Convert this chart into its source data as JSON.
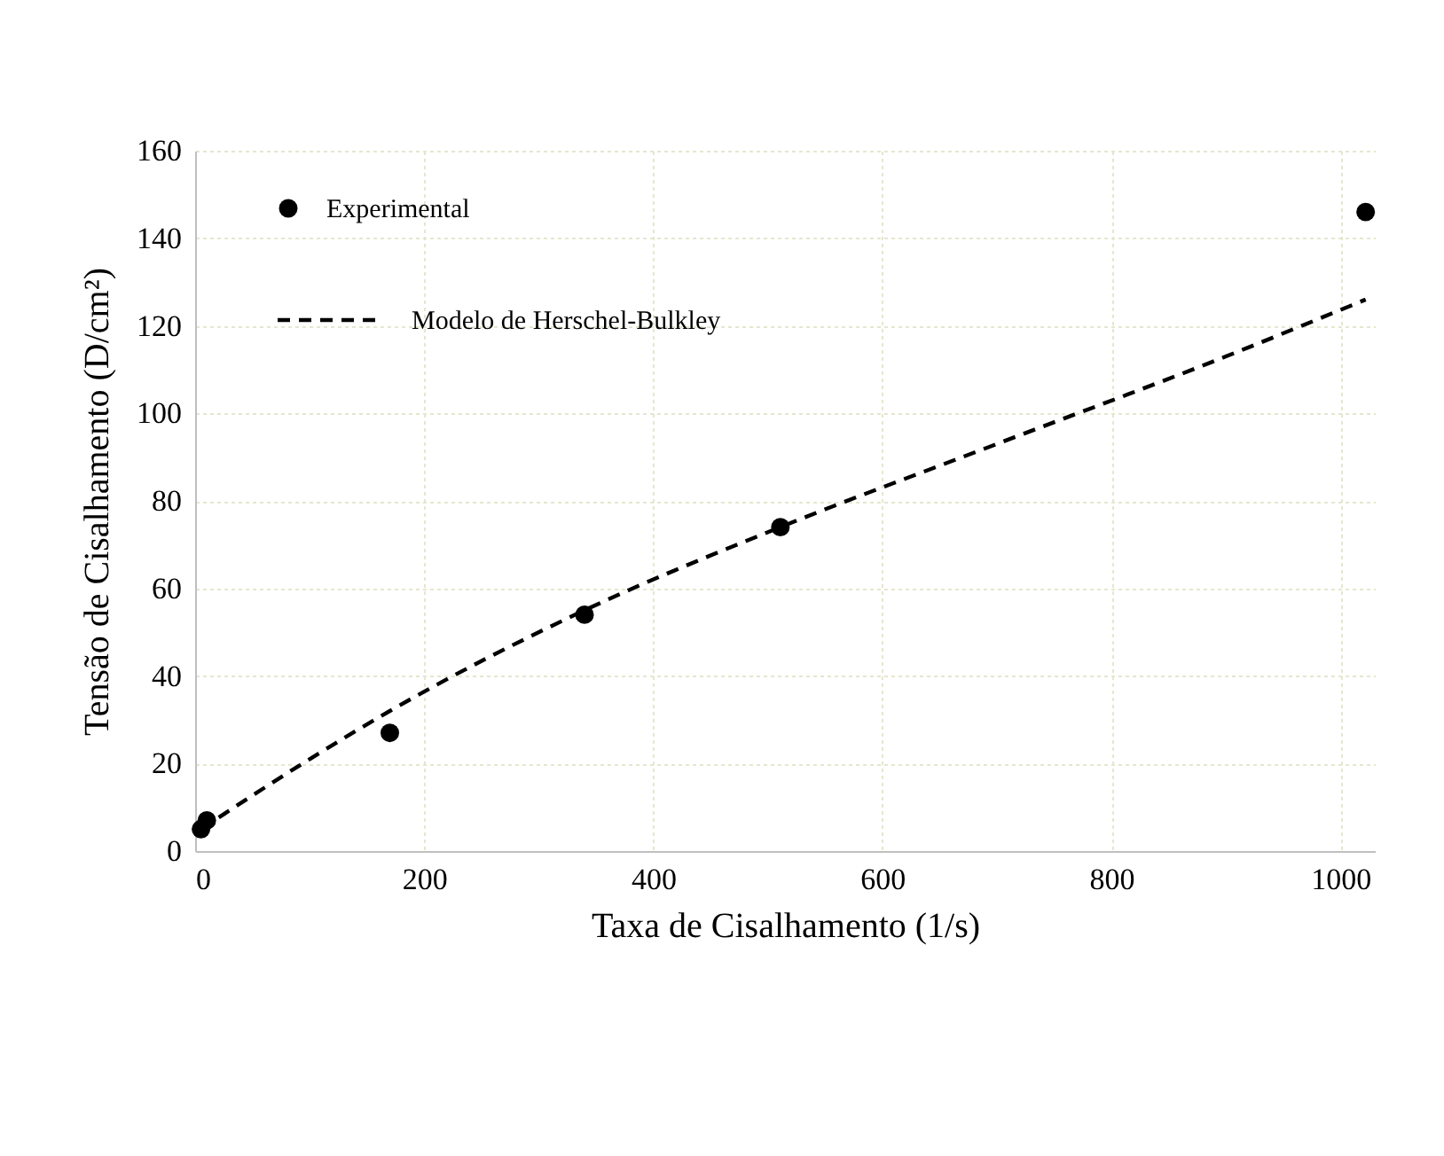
{
  "chart_data": {
    "type": "scatter",
    "xlabel": "Taxa de Cisalhamento (1/s)",
    "ylabel": "Tensão de Cisalhamento (D/cm²)",
    "xlim": [
      0,
      1030
    ],
    "xticks": [
      0,
      200,
      400,
      600,
      800,
      {
        "value": 1000,
        "label": "1000"
      }
    ],
    "ylim": [
      0,
      160
    ],
    "yticks": [
      0,
      20,
      40,
      60,
      80,
      100,
      120,
      140,
      160
    ],
    "grid": true,
    "legend": "top left",
    "series": [
      {
        "name": "Experimental",
        "marker": "circle",
        "color": "#000000",
        "x": [
          5.1,
          10.2,
          170,
          340,
          511,
          1022
        ],
        "values": [
          5,
          7,
          27,
          54,
          74,
          146
        ]
      },
      {
        "name": "Modelo de Herschel-Bulkley",
        "type": "line",
        "marker": "none",
        "line_style": "dashed",
        "color": "#000000",
        "x": [
          5.1,
          100,
          170,
          340,
          511,
          700,
          900,
          1022
        ],
        "values": [
          5,
          21,
          32,
          55,
          74,
          93,
          113,
          126
        ]
      }
    ]
  }
}
